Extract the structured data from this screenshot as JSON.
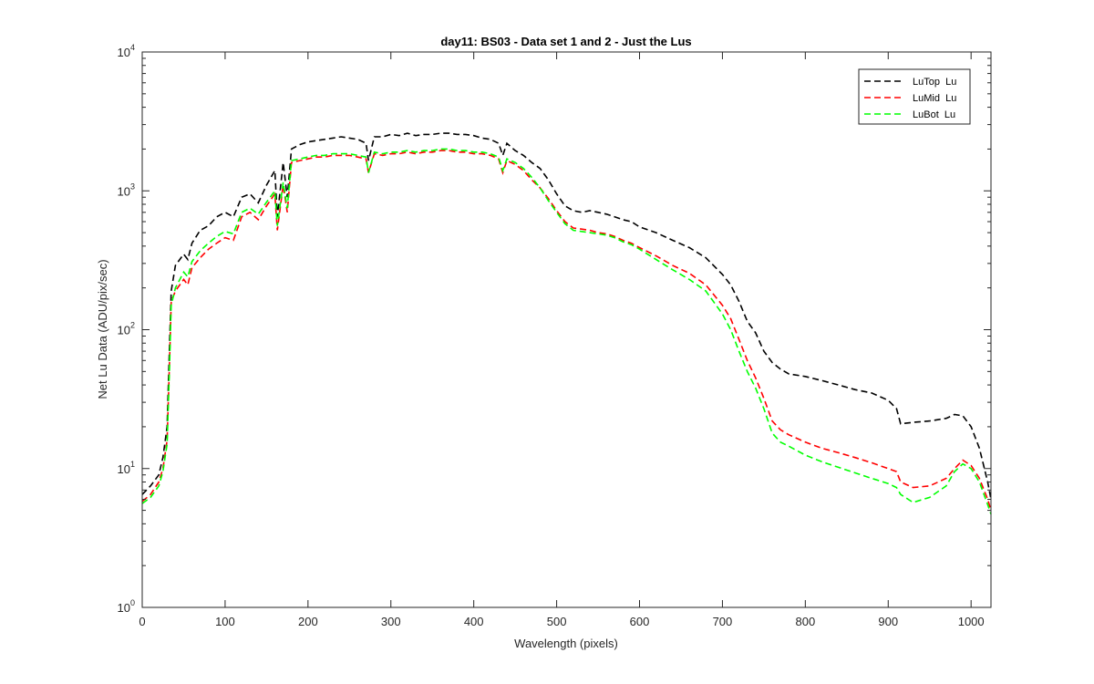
{
  "chart_data": {
    "type": "line",
    "title": "day11: BS03 - Data set 1 and 2 - Just the Lus",
    "xlabel": "Wavelength (pixels)",
    "ylabel": "Net Lu Data (ADU/pix/sec)",
    "xlim": [
      0,
      1024
    ],
    "ylim": [
      1,
      10000
    ],
    "yscale": "log",
    "grid": false,
    "legend_position": "top-right",
    "xticks": [
      0,
      100,
      200,
      300,
      400,
      500,
      600,
      700,
      800,
      900,
      1000
    ],
    "yticks": [
      {
        "value": 1,
        "base": "10",
        "exp": "0"
      },
      {
        "value": 10,
        "base": "10",
        "exp": "1"
      },
      {
        "value": 100,
        "base": "10",
        "exp": "2"
      },
      {
        "value": 1000,
        "base": "10",
        "exp": "3"
      },
      {
        "value": 10000,
        "base": "10",
        "exp": "4"
      }
    ],
    "x": [
      0,
      10,
      20,
      25,
      30,
      33,
      35,
      40,
      50,
      55,
      60,
      70,
      80,
      90,
      100,
      110,
      120,
      130,
      140,
      150,
      160,
      163,
      170,
      175,
      180,
      190,
      200,
      210,
      220,
      230,
      240,
      250,
      260,
      270,
      273,
      280,
      290,
      300,
      310,
      320,
      330,
      340,
      350,
      360,
      370,
      380,
      390,
      400,
      410,
      420,
      430,
      435,
      440,
      450,
      460,
      470,
      480,
      490,
      500,
      510,
      520,
      530,
      540,
      550,
      560,
      570,
      580,
      590,
      600,
      620,
      640,
      660,
      680,
      700,
      710,
      720,
      730,
      740,
      750,
      760,
      770,
      780,
      800,
      820,
      840,
      860,
      880,
      900,
      910,
      915,
      930,
      950,
      970,
      980,
      990,
      1000,
      1010,
      1020,
      1024
    ],
    "series": [
      {
        "name": "LuTop  Lu",
        "color": "#000000",
        "values": [
          6.5,
          7.5,
          9,
          12,
          20,
          80,
          190,
          290,
          350,
          320,
          420,
          520,
          560,
          650,
          700,
          650,
          900,
          950,
          820,
          1100,
          1400,
          650,
          1600,
          900,
          2000,
          2150,
          2250,
          2300,
          2350,
          2400,
          2450,
          2400,
          2350,
          2200,
          1650,
          2450,
          2450,
          2550,
          2500,
          2600,
          2500,
          2550,
          2550,
          2600,
          2600,
          2550,
          2550,
          2500,
          2400,
          2350,
          2200,
          1800,
          2200,
          1950,
          1800,
          1600,
          1450,
          1200,
          950,
          780,
          720,
          700,
          720,
          700,
          680,
          650,
          620,
          600,
          550,
          500,
          440,
          390,
          330,
          250,
          210,
          160,
          115,
          95,
          70,
          58,
          52,
          48,
          46,
          43,
          40,
          37,
          35,
          31,
          27,
          21,
          21.5,
          22,
          23,
          24.5,
          24,
          20,
          14,
          8,
          6
        ]
      },
      {
        "name": "LuMid  Lu",
        "color": "#ff0000",
        "values": [
          5.8,
          6.5,
          8,
          10,
          16,
          60,
          160,
          190,
          230,
          210,
          280,
          330,
          380,
          420,
          460,
          440,
          650,
          700,
          620,
          780,
          950,
          520,
          1100,
          700,
          1600,
          1650,
          1700,
          1750,
          1750,
          1800,
          1800,
          1800,
          1750,
          1700,
          1350,
          1850,
          1800,
          1850,
          1850,
          1900,
          1850,
          1900,
          1900,
          1950,
          1950,
          1900,
          1900,
          1850,
          1850,
          1800,
          1700,
          1350,
          1650,
          1550,
          1400,
          1200,
          1050,
          880,
          720,
          600,
          540,
          530,
          520,
          500,
          490,
          470,
          440,
          420,
          390,
          340,
          290,
          255,
          210,
          150,
          120,
          85,
          60,
          45,
          32,
          22,
          19,
          17.5,
          15.5,
          14,
          13,
          12,
          11,
          10,
          9.5,
          8,
          7.3,
          7.5,
          8.5,
          10,
          11.5,
          10.5,
          8.5,
          6,
          5
        ]
      },
      {
        "name": "LuBot  Lu",
        "color": "#00ff00",
        "values": [
          5.6,
          6.2,
          7.5,
          9.5,
          15,
          55,
          150,
          200,
          260,
          240,
          310,
          370,
          420,
          470,
          510,
          490,
          700,
          750,
          680,
          830,
          1000,
          560,
          1150,
          750,
          1650,
          1700,
          1750,
          1800,
          1800,
          1850,
          1850,
          1850,
          1800,
          1750,
          1350,
          1900,
          1850,
          1900,
          1900,
          1950,
          1900,
          1950,
          1950,
          2000,
          2000,
          1950,
          1950,
          1900,
          1900,
          1850,
          1750,
          1400,
          1700,
          1600,
          1450,
          1250,
          1050,
          850,
          700,
          580,
          520,
          510,
          500,
          490,
          480,
          460,
          430,
          410,
          380,
          320,
          270,
          230,
          190,
          130,
          100,
          70,
          50,
          38,
          27,
          18,
          15.5,
          14.5,
          12.5,
          11.2,
          10.2,
          9.3,
          8.5,
          7.8,
          7.3,
          6.5,
          5.7,
          6.2,
          7.5,
          9.5,
          10.8,
          10,
          8,
          5.5,
          4.7
        ]
      }
    ]
  }
}
